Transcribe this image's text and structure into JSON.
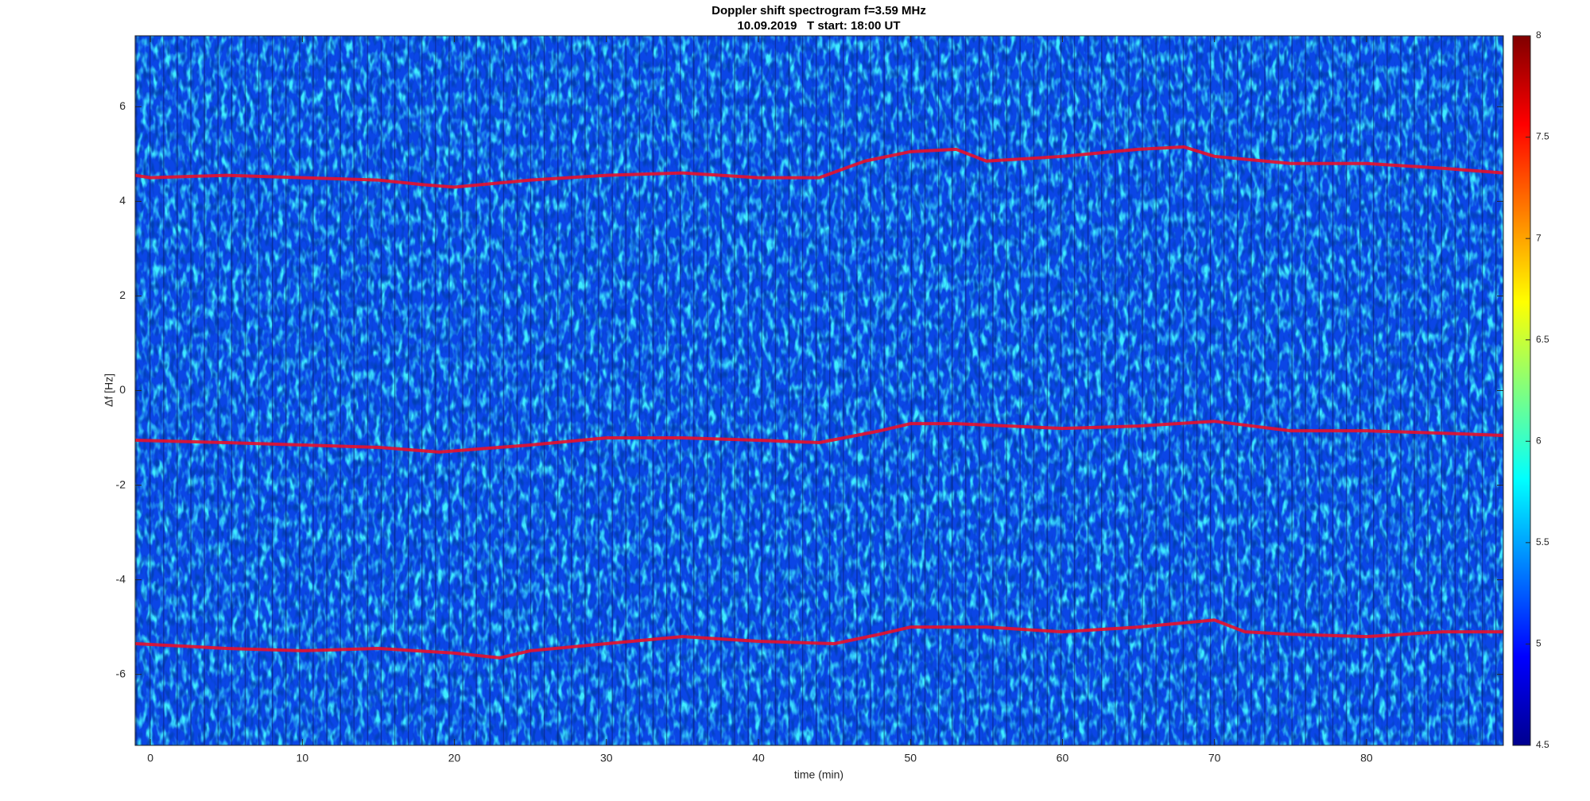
{
  "chart_data": {
    "type": "spectrogram",
    "title": "Doppler shift spectrogram f=3.59 MHz",
    "subtitle": "10.09.2019   T start: 18:00 UT",
    "xlabel": "time (min)",
    "ylabel": "Δf [Hz]",
    "xlim": [
      -1,
      89
    ],
    "ylim": [
      -7.5,
      7.5
    ],
    "xticks": [
      0,
      10,
      20,
      30,
      40,
      50,
      60,
      70,
      80
    ],
    "yticks": [
      -6,
      -4,
      -2,
      0,
      2,
      4,
      6
    ],
    "colormap": "jet",
    "clim": [
      4.5,
      8
    ],
    "cticks": [
      4.5,
      5,
      5.5,
      6,
      6.5,
      7,
      7.5,
      8
    ],
    "series": [
      {
        "color": "#e8102a",
        "x": [
          -1,
          0,
          5,
          10,
          15,
          18,
          20,
          25,
          30,
          35,
          40,
          44,
          47,
          50,
          53,
          55,
          60,
          65,
          68,
          70,
          75,
          80,
          85,
          89
        ],
        "values": [
          4.55,
          4.5,
          4.55,
          4.5,
          4.45,
          4.35,
          4.3,
          4.45,
          4.55,
          4.6,
          4.5,
          4.5,
          4.85,
          5.05,
          5.1,
          4.85,
          4.95,
          5.1,
          5.15,
          4.95,
          4.8,
          4.8,
          4.7,
          4.6
        ]
      },
      {
        "color": "#e8102a",
        "x": [
          -1,
          5,
          10,
          15,
          19,
          25,
          30,
          35,
          40,
          44,
          48,
          50,
          53,
          60,
          65,
          70,
          75,
          80,
          85,
          89
        ],
        "values": [
          -1.05,
          -1.1,
          -1.15,
          -1.2,
          -1.3,
          -1.15,
          -1.0,
          -1.0,
          -1.05,
          -1.1,
          -0.85,
          -0.7,
          -0.7,
          -0.8,
          -0.75,
          -0.65,
          -0.85,
          -0.85,
          -0.9,
          -0.95
        ]
      },
      {
        "color": "#e8102a",
        "x": [
          -1,
          5,
          10,
          15,
          20,
          23,
          25,
          30,
          35,
          40,
          45,
          48,
          50,
          55,
          60,
          65,
          70,
          72,
          75,
          80,
          85,
          89
        ],
        "values": [
          -5.35,
          -5.45,
          -5.5,
          -5.45,
          -5.55,
          -5.65,
          -5.5,
          -5.35,
          -5.2,
          -5.3,
          -5.35,
          -5.15,
          -5.0,
          -5.0,
          -5.1,
          -5.0,
          -4.85,
          -5.1,
          -5.15,
          -5.2,
          -5.1,
          -5.1
        ]
      }
    ]
  }
}
